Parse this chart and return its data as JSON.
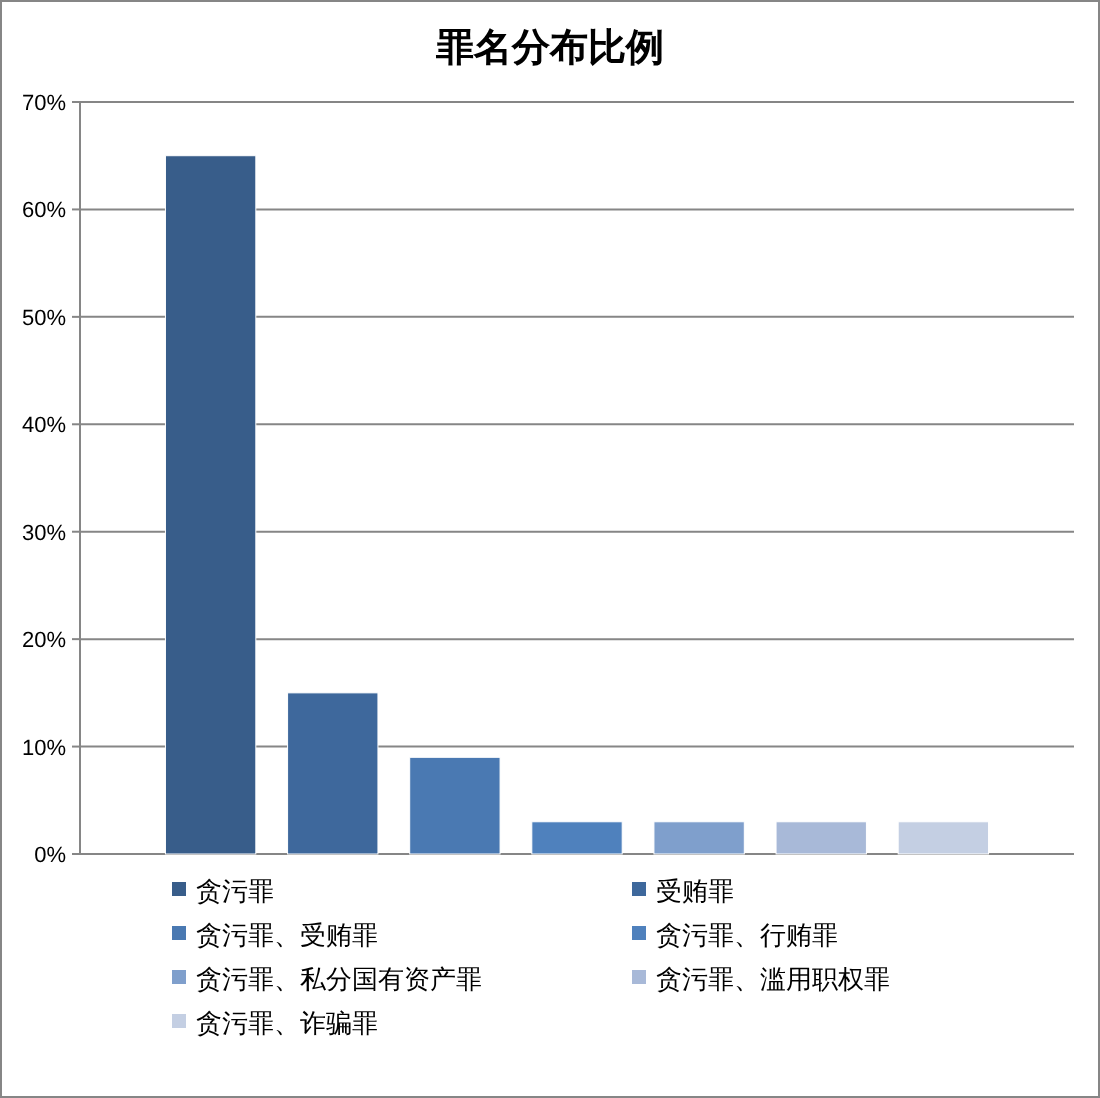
{
  "chart_data": {
    "type": "bar",
    "title": "罪名分布比例",
    "categories": [
      null
    ],
    "ylim": [
      0,
      70
    ],
    "yticks": [
      {
        "value": 0,
        "label": "0%"
      },
      {
        "value": 10,
        "label": "10%"
      },
      {
        "value": 20,
        "label": "20%"
      },
      {
        "value": 30,
        "label": "30%"
      },
      {
        "value": 40,
        "label": "40%"
      },
      {
        "value": 50,
        "label": "50%"
      },
      {
        "value": 60,
        "label": "60%"
      },
      {
        "value": 70,
        "label": "70%"
      }
    ],
    "grid": "y",
    "legend": "bottom",
    "series": [
      {
        "name": "贪污罪",
        "color": "#385d8a",
        "values": [
          65
        ]
      },
      {
        "name": "受贿罪",
        "color": "#3e689c",
        "values": [
          15
        ]
      },
      {
        "name": "贪污罪、受贿罪",
        "color": "#4a79b2",
        "values": [
          9
        ]
      },
      {
        "name": "贪污罪、行贿罪",
        "color": "#4f81bd",
        "values": [
          3
        ]
      },
      {
        "name": "贪污罪、私分国有资产罪",
        "color": "#7f9fcc",
        "values": [
          3
        ]
      },
      {
        "name": "贪污罪、滥用职权罪",
        "color": "#a8b9d8",
        "values": [
          3
        ]
      },
      {
        "name": "贪污罪、诈骗罪",
        "color": "#c4cfe3",
        "values": [
          3
        ]
      }
    ]
  }
}
